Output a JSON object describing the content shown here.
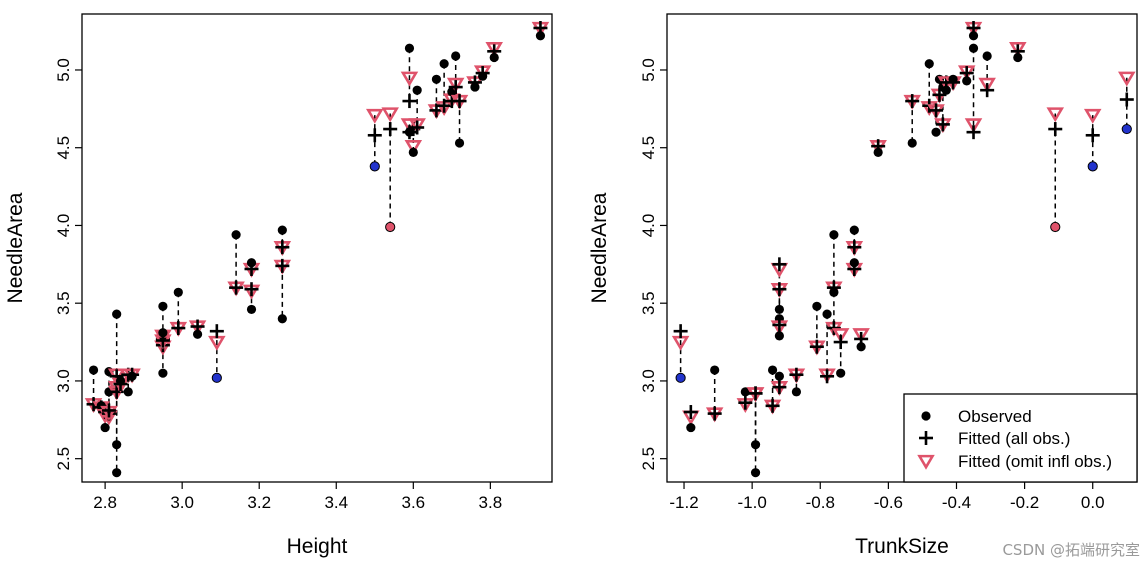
{
  "chart_data": [
    {
      "type": "scatter",
      "xlabel": "Height",
      "ylabel": "NeedleArea",
      "xlim": [
        2.74,
        3.96
      ],
      "ylim": [
        2.35,
        5.36
      ],
      "xticks": [
        "2.8",
        "3.0",
        "3.2",
        "3.4",
        "3.6",
        "3.8"
      ],
      "yticks": [
        "2.5",
        "3.0",
        "3.5",
        "4.0",
        "4.5",
        "5.0"
      ],
      "points": [
        {
          "x": 2.77,
          "obs": 3.07,
          "fit_all": 2.85,
          "fit_omit": 2.85
        },
        {
          "x": 2.79,
          "obs": 2.84,
          "fit_all": 2.83,
          "fit_omit": 2.83
        },
        {
          "x": 2.8,
          "obs": 2.7,
          "fit_all": 2.8,
          "fit_omit": 2.78
        },
        {
          "x": 2.81,
          "obs": 3.06,
          "fit_all": 2.79,
          "fit_omit": 2.77
        },
        {
          "x": 2.81,
          "obs": 2.93,
          "fit_all": 2.81,
          "fit_omit": 2.8
        },
        {
          "x": 2.83,
          "obs": 3.43,
          "fit_all": 2.96,
          "fit_omit": 2.96
        },
        {
          "x": 2.83,
          "obs": 2.59,
          "fit_all": 2.93,
          "fit_omit": 2.93
        },
        {
          "x": 2.83,
          "obs": 2.41,
          "fit_all": 3.03,
          "fit_omit": 3.04
        },
        {
          "x": 2.84,
          "obs": 3.0,
          "fit_all": 2.98,
          "fit_omit": 2.98
        },
        {
          "x": 2.86,
          "obs": 2.93,
          "fit_all": 3.04,
          "fit_omit": 3.04
        },
        {
          "x": 2.87,
          "obs": 3.03,
          "fit_all": 3.04,
          "fit_omit": 3.04
        },
        {
          "x": 2.95,
          "obs": 3.48,
          "fit_all": 3.27,
          "fit_omit": 3.29
        },
        {
          "x": 2.95,
          "obs": 3.05,
          "fit_all": 3.23,
          "fit_omit": 3.22
        },
        {
          "x": 2.95,
          "obs": 3.31,
          "fit_all": 3.26,
          "fit_omit": 3.26
        },
        {
          "x": 2.99,
          "obs": 3.57,
          "fit_all": 3.34,
          "fit_omit": 3.34
        },
        {
          "x": 3.04,
          "obs": 3.3,
          "fit_all": 3.35,
          "fit_omit": 3.35
        },
        {
          "x": 3.09,
          "obs": 3.02,
          "fit_all": 3.32,
          "fit_omit": 3.25,
          "influential": true
        },
        {
          "x": 3.14,
          "obs": 3.94,
          "fit_all": 3.6,
          "fit_omit": 3.6
        },
        {
          "x": 3.18,
          "obs": 3.76,
          "fit_all": 3.72,
          "fit_omit": 3.72
        },
        {
          "x": 3.18,
          "obs": 3.46,
          "fit_all": 3.59,
          "fit_omit": 3.58
        },
        {
          "x": 3.26,
          "obs": 3.97,
          "fit_all": 3.86,
          "fit_omit": 3.86
        },
        {
          "x": 3.26,
          "obs": 3.4,
          "fit_all": 3.74,
          "fit_omit": 3.74
        },
        {
          "x": 3.5,
          "obs": 4.38,
          "fit_all": 4.58,
          "fit_omit": 4.71,
          "influential": true
        },
        {
          "x": 3.54,
          "obs": 3.99,
          "fit_all": 4.62,
          "fit_omit": 4.72,
          "influential": true
        },
        {
          "x": 3.59,
          "obs": 5.14,
          "fit_all": 4.8,
          "fit_omit": 4.95
        },
        {
          "x": 3.59,
          "obs": 4.6,
          "fit_all": 4.6,
          "fit_omit": 4.65
        },
        {
          "x": 3.6,
          "obs": 4.47,
          "fit_all": 4.62,
          "fit_omit": 4.51
        },
        {
          "x": 3.61,
          "obs": 4.87,
          "fit_all": 4.63,
          "fit_omit": 4.65
        },
        {
          "x": 3.66,
          "obs": 4.94,
          "fit_all": 4.74,
          "fit_omit": 4.74
        },
        {
          "x": 3.68,
          "obs": 5.04,
          "fit_all": 4.77,
          "fit_omit": 4.76
        },
        {
          "x": 3.7,
          "obs": 4.86,
          "fit_all": 4.8,
          "fit_omit": 4.81
        },
        {
          "x": 3.71,
          "obs": 5.09,
          "fit_all": 4.89,
          "fit_omit": 4.91
        },
        {
          "x": 3.72,
          "obs": 4.53,
          "fit_all": 4.8,
          "fit_omit": 4.8
        },
        {
          "x": 3.76,
          "obs": 4.89,
          "fit_all": 4.92,
          "fit_omit": 4.92
        },
        {
          "x": 3.78,
          "obs": 4.96,
          "fit_all": 4.98,
          "fit_omit": 4.99
        },
        {
          "x": 3.81,
          "obs": 5.08,
          "fit_all": 5.12,
          "fit_omit": 5.14
        },
        {
          "x": 3.93,
          "obs": 5.22,
          "fit_all": 5.27,
          "fit_omit": 5.27
        }
      ]
    },
    {
      "type": "scatter",
      "xlabel": "TrunkSize",
      "ylabel": "NeedleArea",
      "xlim": [
        -1.25,
        0.13
      ],
      "ylim": [
        2.35,
        5.36
      ],
      "xticks": [
        "-1.2",
        "-1.0",
        "-0.8",
        "-0.6",
        "-0.4",
        "-0.2",
        "0.0"
      ],
      "yticks": [
        "2.5",
        "3.0",
        "3.5",
        "4.0",
        "4.5",
        "5.0"
      ],
      "legend": {
        "position": "bottom-right",
        "items": [
          {
            "label": "Observed",
            "symbol": "dot"
          },
          {
            "label": "Fitted (all obs.)",
            "symbol": "cross"
          },
          {
            "label": "Fitted (omit infl obs.)",
            "symbol": "triangle",
            "color": "#df536b"
          }
        ]
      },
      "points": [
        {
          "x": -1.21,
          "obs": 3.02,
          "fit_all": 3.32,
          "fit_omit": 3.25,
          "influential": true
        },
        {
          "x": -1.18,
          "obs": 2.7,
          "fit_all": 2.8,
          "fit_omit": 2.77
        },
        {
          "x": -1.11,
          "obs": 3.07,
          "fit_all": 2.79,
          "fit_omit": 2.79
        },
        {
          "x": -1.02,
          "obs": 2.93,
          "fit_all": 2.86,
          "fit_omit": 2.85
        },
        {
          "x": -0.99,
          "obs": 2.59,
          "fit_all": 2.92,
          "fit_omit": 2.92
        },
        {
          "x": -0.99,
          "obs": 2.41,
          "fit_all": 2.92,
          "fit_omit": 2.92
        },
        {
          "x": -0.94,
          "obs": 3.07,
          "fit_all": 2.84,
          "fit_omit": 2.84
        },
        {
          "x": -0.92,
          "obs": 3.46,
          "fit_all": 3.75,
          "fit_omit": 3.72
        },
        {
          "x": -0.92,
          "obs": 3.4,
          "fit_all": 3.59,
          "fit_omit": 3.59
        },
        {
          "x": -0.92,
          "obs": 3.29,
          "fit_all": 3.36,
          "fit_omit": 3.35
        },
        {
          "x": -0.92,
          "obs": 3.03,
          "fit_all": 2.96,
          "fit_omit": 2.96
        },
        {
          "x": -0.87,
          "obs": 2.93,
          "fit_all": 3.04,
          "fit_omit": 3.04
        },
        {
          "x": -0.81,
          "obs": 3.48,
          "fit_all": 3.22,
          "fit_omit": 3.22
        },
        {
          "x": -0.78,
          "obs": 3.43,
          "fit_all": 3.03,
          "fit_omit": 3.04
        },
        {
          "x": -0.76,
          "obs": 3.94,
          "fit_all": 3.6,
          "fit_omit": 3.6
        },
        {
          "x": -0.76,
          "obs": 3.57,
          "fit_all": 3.34,
          "fit_omit": 3.34
        },
        {
          "x": -0.74,
          "obs": 3.05,
          "fit_all": 3.25,
          "fit_omit": 3.3
        },
        {
          "x": -0.7,
          "obs": 3.97,
          "fit_all": 3.86,
          "fit_omit": 3.86
        },
        {
          "x": -0.7,
          "obs": 3.76,
          "fit_all": 3.72,
          "fit_omit": 3.72
        },
        {
          "x": -0.68,
          "obs": 3.22,
          "fit_all": 3.27,
          "fit_omit": 3.3
        },
        {
          "x": -0.63,
          "obs": 4.47,
          "fit_all": 4.51,
          "fit_omit": 4.51
        },
        {
          "x": -0.53,
          "obs": 4.53,
          "fit_all": 4.8,
          "fit_omit": 4.8
        },
        {
          "x": -0.48,
          "obs": 5.04,
          "fit_all": 4.77,
          "fit_omit": 4.76
        },
        {
          "x": -0.46,
          "obs": 4.6,
          "fit_all": 4.74,
          "fit_omit": 4.74
        },
        {
          "x": -0.45,
          "obs": 4.94,
          "fit_all": 4.84,
          "fit_omit": 4.84
        },
        {
          "x": -0.44,
          "obs": 4.89,
          "fit_all": 4.65,
          "fit_omit": 4.65
        },
        {
          "x": -0.43,
          "obs": 4.87,
          "fit_all": 4.92,
          "fit_omit": 4.92
        },
        {
          "x": -0.41,
          "obs": 4.94,
          "fit_all": 4.92,
          "fit_omit": 4.92
        },
        {
          "x": -0.37,
          "obs": 4.93,
          "fit_all": 4.98,
          "fit_omit": 4.99
        },
        {
          "x": -0.35,
          "obs": 5.22,
          "fit_all": 5.27,
          "fit_omit": 5.27
        },
        {
          "x": -0.35,
          "obs": 5.14,
          "fit_all": 4.6,
          "fit_omit": 4.65
        },
        {
          "x": -0.31,
          "obs": 5.09,
          "fit_all": 4.87,
          "fit_omit": 4.91
        },
        {
          "x": -0.22,
          "obs": 5.08,
          "fit_all": 5.12,
          "fit_omit": 5.14
        },
        {
          "x": -0.11,
          "obs": 3.99,
          "fit_all": 4.62,
          "fit_omit": 4.72,
          "influential": true
        },
        {
          "x": 0.0,
          "obs": 4.38,
          "fit_all": 4.58,
          "fit_omit": 4.71,
          "influential": true
        },
        {
          "x": 0.1,
          "obs": 4.62,
          "fit_all": 4.81,
          "fit_omit": 4.95,
          "influential": true
        }
      ]
    }
  ],
  "watermark": "CSDN @拓端研究室"
}
